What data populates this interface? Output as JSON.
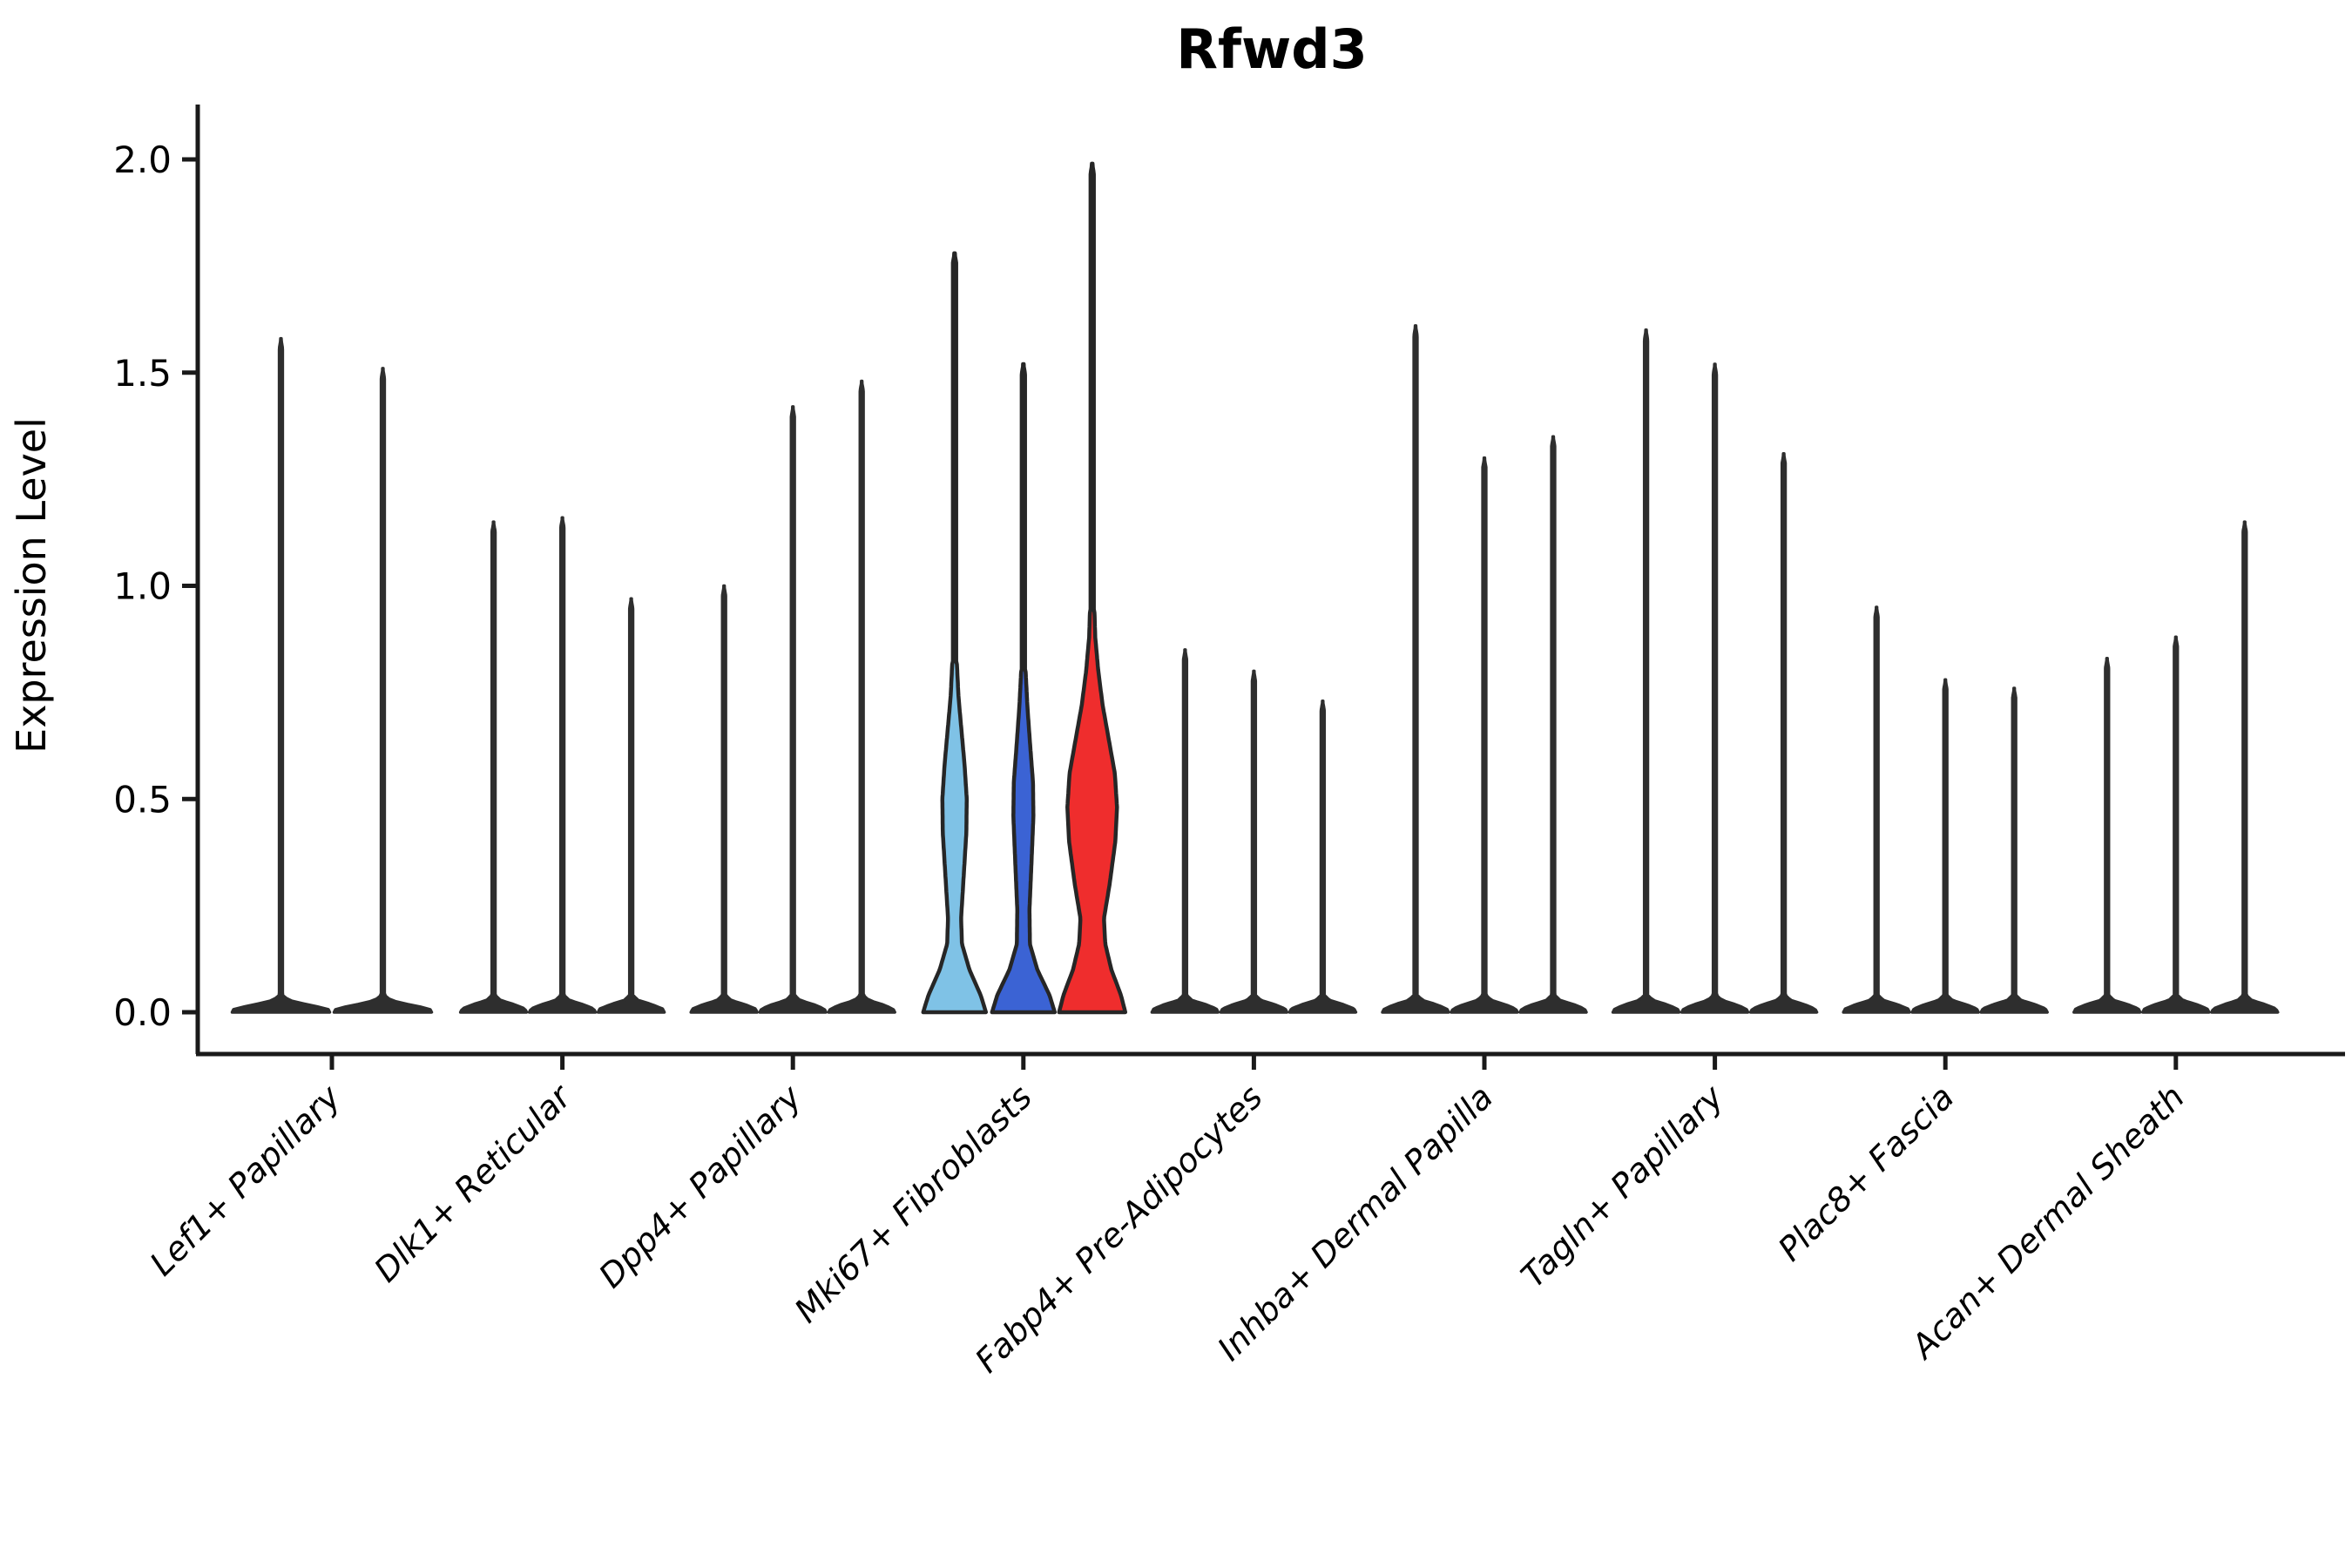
{
  "page": {
    "background": "#FFFFFF"
  },
  "chart_data": {
    "type": "violin",
    "title": "Rfwd3",
    "ylabel": "Expression Level",
    "xlabel": "",
    "ylim": [
      0,
      2.05
    ],
    "yticks": [
      0.0,
      0.5,
      1.0,
      1.5,
      2.0
    ],
    "ytick_labels": [
      "0.0",
      "0.5",
      "1.0",
      "1.5",
      "2.0"
    ],
    "grid": false,
    "legend": "none",
    "categories": [
      "Lef1+ Papillary",
      "Dlk1+ Reticular",
      "Dpp4+ Papillary",
      "Mki67+ Fibroblasts",
      "Fabp4+ Pre-Adipocytes",
      "Inhba+ Dermal Papilla",
      "Tagln+ Papillary",
      "Plac8+ Fascia",
      "Acan+ Dermal Sheath"
    ],
    "colors": {
      "violin_dark": "#2E2E2E",
      "outline": "#262626",
      "axis": "#1A1A1A",
      "highlight_lightblue": "#7FC2E6",
      "highlight_blue": "#3B63D4",
      "highlight_red": "#EF2D2D"
    },
    "groups": [
      {
        "category": "Lef1+ Papillary",
        "violins": [
          {
            "max": 1.58,
            "color": "#2E2E2E",
            "shape": "spike_wide"
          },
          {
            "max": 1.51,
            "color": "#2E2E2E",
            "shape": "spike_wide"
          }
        ]
      },
      {
        "category": "Dlk1+ Reticular",
        "violins": [
          {
            "max": 1.15,
            "color": "#2E2E2E",
            "shape": "spike"
          },
          {
            "max": 1.16,
            "color": "#2E2E2E",
            "shape": "spike"
          },
          {
            "max": 0.97,
            "color": "#2E2E2E",
            "shape": "spike"
          }
        ]
      },
      {
        "category": "Dpp4+ Papillary",
        "violins": [
          {
            "max": 1.0,
            "color": "#2E2E2E",
            "shape": "spike"
          },
          {
            "max": 1.42,
            "color": "#2E2E2E",
            "shape": "spike"
          },
          {
            "max": 1.48,
            "color": "#2E2E2E",
            "shape": "spike"
          }
        ]
      },
      {
        "category": "Mki67+ Fibroblasts",
        "violins": [
          {
            "max": 1.78,
            "color": "#7FC2E6",
            "shape": "violin_lightblue"
          },
          {
            "max": 1.52,
            "color": "#3B63D4",
            "shape": "violin_blue"
          },
          {
            "max": 1.99,
            "color": "#EF2D2D",
            "shape": "violin_red"
          }
        ]
      },
      {
        "category": "Fabp4+ Pre-Adipocytes",
        "violins": [
          {
            "max": 0.85,
            "color": "#2E2E2E",
            "shape": "spike"
          },
          {
            "max": 0.8,
            "color": "#2E2E2E",
            "shape": "spike"
          },
          {
            "max": 0.73,
            "color": "#2E2E2E",
            "shape": "spike"
          }
        ]
      },
      {
        "category": "Inhba+ Dermal Papilla",
        "violins": [
          {
            "max": 1.61,
            "color": "#2E2E2E",
            "shape": "spike"
          },
          {
            "max": 1.3,
            "color": "#2E2E2E",
            "shape": "spike"
          },
          {
            "max": 1.35,
            "color": "#2E2E2E",
            "shape": "spike"
          }
        ]
      },
      {
        "category": "Tagln+ Papillary",
        "violins": [
          {
            "max": 1.6,
            "color": "#2E2E2E",
            "shape": "spike"
          },
          {
            "max": 1.52,
            "color": "#2E2E2E",
            "shape": "spike"
          },
          {
            "max": 1.31,
            "color": "#2E2E2E",
            "shape": "spike"
          }
        ]
      },
      {
        "category": "Plac8+ Fascia",
        "violins": [
          {
            "max": 0.95,
            "color": "#2E2E2E",
            "shape": "spike"
          },
          {
            "max": 0.78,
            "color": "#2E2E2E",
            "shape": "spike"
          },
          {
            "max": 0.76,
            "color": "#2E2E2E",
            "shape": "spike"
          }
        ]
      },
      {
        "category": "Acan+ Dermal Sheath",
        "violins": [
          {
            "max": 0.83,
            "color": "#2E2E2E",
            "shape": "spike"
          },
          {
            "max": 0.88,
            "color": "#2E2E2E",
            "shape": "spike"
          },
          {
            "max": 1.15,
            "color": "#2E2E2E",
            "shape": "spike"
          }
        ]
      }
    ],
    "profiles": {
      "spike": [
        [
          0,
          38
        ],
        [
          0.008,
          36
        ],
        [
          0.018,
          24
        ],
        [
          0.028,
          8
        ],
        [
          0.04,
          1.9
        ]
      ],
      "spike_wide": [
        [
          0,
          56
        ],
        [
          0.008,
          54
        ],
        [
          0.018,
          30
        ],
        [
          0.028,
          9
        ],
        [
          0.04,
          1.9
        ]
      ],
      "violin_lightblue": [
        [
          0,
          36
        ],
        [
          0.04,
          30
        ],
        [
          0.1,
          17
        ],
        [
          0.16,
          8.5
        ],
        [
          0.22,
          7.5
        ],
        [
          0.32,
          10.5
        ],
        [
          0.42,
          13.5
        ],
        [
          0.5,
          14
        ],
        [
          0.58,
          11.5
        ],
        [
          0.66,
          8
        ],
        [
          0.74,
          4.5
        ],
        [
          0.82,
          2.6
        ]
      ],
      "violin_blue": [
        [
          0,
          36
        ],
        [
          0.04,
          30
        ],
        [
          0.1,
          16
        ],
        [
          0.16,
          7.5
        ],
        [
          0.24,
          7
        ],
        [
          0.36,
          9.5
        ],
        [
          0.46,
          11.5
        ],
        [
          0.54,
          11
        ],
        [
          0.62,
          8
        ],
        [
          0.72,
          4.5
        ],
        [
          0.8,
          2.6
        ]
      ],
      "violin_red": [
        [
          0,
          38
        ],
        [
          0.04,
          33
        ],
        [
          0.1,
          22
        ],
        [
          0.16,
          15
        ],
        [
          0.22,
          13.5
        ],
        [
          0.3,
          20
        ],
        [
          0.4,
          26.5
        ],
        [
          0.48,
          28.5
        ],
        [
          0.56,
          26
        ],
        [
          0.64,
          19
        ],
        [
          0.72,
          12
        ],
        [
          0.8,
          7
        ],
        [
          0.88,
          3.5
        ],
        [
          0.94,
          2.6
        ]
      ]
    }
  }
}
